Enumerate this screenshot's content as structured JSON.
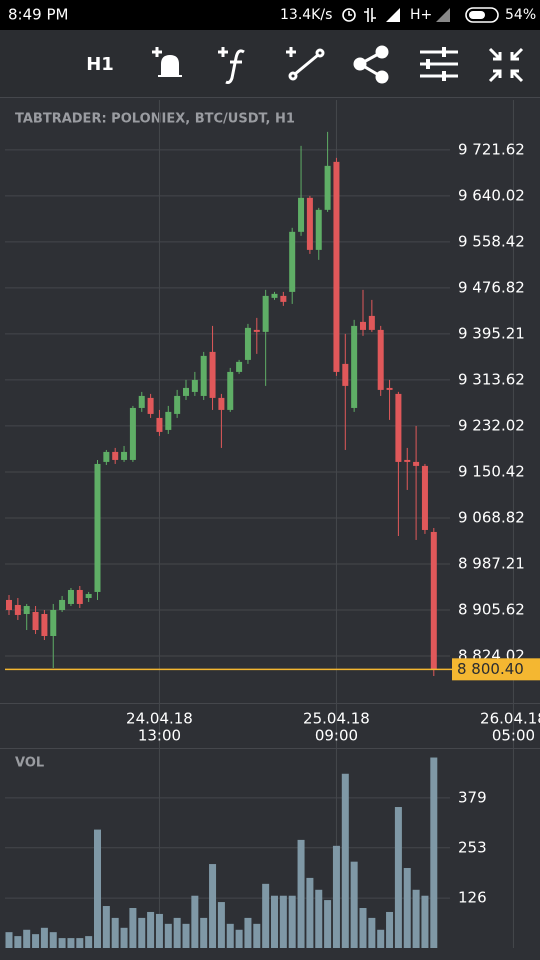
{
  "status_bar": {
    "time": "8:49 PM",
    "speed": "13.4K/s",
    "network": "H+",
    "battery": "54%"
  },
  "toolbar": {
    "timeframe": "H1"
  },
  "chart_data": {
    "type": "candlestick",
    "title": "TABTRADER: POLONIEX, BTC/USDT, H1",
    "categories": [
      null,
      null,
      null,
      null,
      null,
      null,
      null,
      null,
      null,
      null,
      null,
      null,
      null,
      null,
      null,
      null,
      null,
      [
        "24.04.18",
        "13:00"
      ],
      null,
      null,
      null,
      null,
      null,
      null,
      null,
      null,
      null,
      null,
      null,
      null,
      null,
      null,
      null,
      null,
      null,
      null,
      null,
      [
        "25.04.18",
        "09:00"
      ],
      null,
      null,
      null,
      null,
      null,
      null,
      null,
      null,
      null,
      null,
      null,
      null,
      null,
      null,
      null,
      null,
      null,
      null,
      null,
      [
        "26.04.18",
        "05:00"
      ]
    ],
    "open": [
      8923.4,
      8914.5,
      8898.5,
      8902.1,
      8898.5,
      8859.5,
      8905.6,
      8916.3,
      8941.1,
      8926.9,
      8937.6,
      9168.2,
      9185.9,
      9171.7,
      9171.7,
      9263.9,
      9281.7,
      9246.2,
      9224.9,
      9253.3,
      9285.2,
      9292.3,
      9285.2,
      9363.3,
      9281.7,
      9260.4,
      9327.8,
      9349.1,
      9402.3,
      9398.8,
      9459.1,
      9462.6,
      9469.7,
      9576.2,
      9636.5,
      9544.2,
      9615.2,
      9700.3,
      9342.0,
      9263.9,
      9416.5,
      9427.1,
      9402.3,
      9299.4,
      9288.8,
      9171.7,
      9168.2,
      9161.1,
      9044.0,
      null,
      null,
      null,
      null,
      null,
      null,
      null,
      null,
      null
    ],
    "high": [
      8932.2,
      8926.9,
      8916.3,
      8912.7,
      8905.6,
      8916.3,
      8930.5,
      8944.6,
      8948.2,
      8937.6,
      9171.7,
      9189.4,
      9193.0,
      9196.5,
      9267.5,
      9292.3,
      9288.8,
      9260.4,
      9267.5,
      9295.9,
      9313.6,
      9327.8,
      9363.3,
      9409.4,
      9288.8,
      9334.9,
      9349.1,
      9413.0,
      9423.6,
      9473.3,
      9469.7,
      9469.7,
      9583.3,
      9728.7,
      9640.0,
      9618.7,
      9753.5,
      9707.4,
      9395.2,
      9420.1,
      9473.3,
      9455.5,
      9409.4,
      9313.6,
      9292.3,
      9193.0,
      9232.0,
      9164.6,
      9051.1,
      null,
      null,
      null,
      null,
      null,
      null,
      null,
      null,
      null
    ],
    "low": [
      8896.8,
      8887.9,
      8870.1,
      8863.0,
      8852.4,
      8802.7,
      8902.1,
      8912.7,
      8909.2,
      8919.8,
      8923.4,
      9162.8,
      9164.6,
      9168.2,
      9168.2,
      9256.9,
      9246.2,
      9214.3,
      9217.8,
      9246.2,
      9278.1,
      9285.2,
      9278.1,
      9260.4,
      9193.0,
      9256.9,
      9324.3,
      9342.0,
      9359.8,
      9303.0,
      9455.5,
      9444.9,
      9448.4,
      9569.1,
      9537.1,
      9526.5,
      9611.6,
      9320.7,
      9189.4,
      9256.9,
      9391.7,
      9398.8,
      9285.2,
      9242.7,
      9036.9,
      9118.5,
      9029.8,
      9040.5,
      8788.5,
      null,
      null,
      null,
      null,
      null,
      null,
      null,
      null,
      null
    ],
    "close": [
      8905.6,
      8896.8,
      8912.7,
      8870.1,
      8859.5,
      8905.6,
      8923.4,
      8941.1,
      8916.3,
      8934.0,
      9164.6,
      9185.9,
      9171.7,
      9185.9,
      9263.9,
      9285.2,
      9253.3,
      9221.4,
      9256.9,
      9285.2,
      9299.4,
      9313.6,
      9356.2,
      9281.7,
      9260.4,
      9327.8,
      9345.6,
      9405.9,
      9398.8,
      9462.6,
      9466.2,
      9452.0,
      9576.2,
      9636.5,
      9544.2,
      9615.2,
      9693.2,
      9327.8,
      9303.0,
      9409.4,
      9402.3,
      9402.3,
      9295.9,
      9295.9,
      9168.2,
      9168.2,
      9161.1,
      9047.5,
      8800.4,
      null,
      null,
      null,
      null,
      null,
      null,
      null,
      null,
      null
    ],
    "up_color": "#5fae66",
    "down_color": "#e0585a",
    "ylim": [
      8746,
      9810
    ],
    "yticks": [
      {
        "value": 9721.62,
        "label": "9 721.62"
      },
      {
        "value": 9640.02,
        "label": "9 640.02"
      },
      {
        "value": 9558.42,
        "label": "9 558.42"
      },
      {
        "value": 9476.82,
        "label": "9 476.82"
      },
      {
        "value": 9395.21,
        "label": "9 395.21"
      },
      {
        "value": 9313.62,
        "label": "9 313.62"
      },
      {
        "value": 9232.02,
        "label": "9 232.02"
      },
      {
        "value": 9150.42,
        "label": "9 150.42"
      },
      {
        "value": 9068.82,
        "label": "9 068.82"
      },
      {
        "value": 8987.21,
        "label": "8 987.21"
      },
      {
        "value": 8905.62,
        "label": "8 905.62"
      },
      {
        "value": 8824.02,
        "label": "8 824.02"
      }
    ],
    "last_price": {
      "value": 8800.4,
      "label": "8 800.40"
    },
    "last_price_color": "#f4b731",
    "grid": true,
    "volume": {
      "title": "VOL",
      "color": "#7f98a6",
      "values": [
        40,
        30,
        46,
        35,
        51,
        40,
        25,
        25,
        25,
        30,
        299,
        106,
        76,
        51,
        101,
        76,
        91,
        86,
        61,
        76,
        61,
        132,
        76,
        212,
        116,
        61,
        46,
        76,
        61,
        162,
        132,
        132,
        132,
        273,
        177,
        147,
        121,
        258,
        440,
        218,
        101,
        76,
        46,
        91,
        356,
        202,
        147,
        132,
        481,
        null,
        null,
        null,
        null,
        null,
        null,
        null,
        null,
        null
      ],
      "ylim": [
        0,
        500
      ],
      "yticks": [
        126,
        253,
        379
      ]
    }
  }
}
